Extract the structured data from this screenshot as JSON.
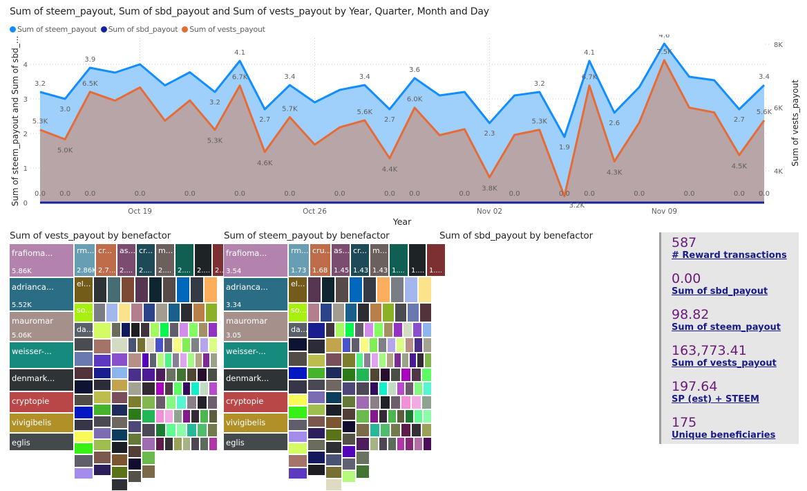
{
  "line_chart": {
    "title": "Sum of steem_payout, Sum of sbd_payout and Sum of vests_payout by Year, Quarter, Month and Day",
    "legend": [
      {
        "label": "Sum of steem_payout",
        "color": "#118dff"
      },
      {
        "label": "Sum of sbd_payout",
        "color": "#12239e"
      },
      {
        "label": "Sum of vests_payout",
        "color": "#e66c37"
      }
    ],
    "y_left_label": "Sum of steem_payout and Sum of sbd_...",
    "y_right_label": "Sum of vests_payout",
    "x_label": "Year",
    "y_left_ticks": [
      "0",
      "1",
      "2",
      "3",
      "4"
    ],
    "y_right_ticks": [
      "4K",
      "6K",
      "8K"
    ],
    "x_ticks": [
      "Oct 19",
      "Oct 26",
      "Nov 02",
      "Nov 09"
    ]
  },
  "chart_data": {
    "type": "area",
    "title": "Sum of steem_payout, Sum of sbd_payout and Sum of vests_payout by Year, Quarter, Month and Day",
    "xlabel": "Year",
    "ylabel_left": "Sum of steem_payout and Sum of sbd_payout",
    "ylabel_right": "Sum of vests_payout",
    "x": [
      "Oct 15",
      "Oct 16",
      "Oct 17",
      "Oct 18",
      "Oct 19",
      "Oct 20",
      "Oct 21",
      "Oct 22",
      "Oct 23",
      "Oct 24",
      "Oct 25",
      "Oct 26",
      "Oct 27",
      "Oct 28",
      "Oct 29",
      "Oct 30",
      "Oct 31",
      "Nov 01",
      "Nov 02",
      "Nov 03",
      "Nov 04",
      "Nov 05",
      "Nov 06",
      "Nov 07",
      "Nov 08",
      "Nov 09",
      "Nov 10",
      "Nov 11",
      "Nov 12",
      "Nov 13"
    ],
    "x_ticks": [
      "Oct 19",
      "Oct 26",
      "Nov 02",
      "Nov 09"
    ],
    "ylim_left": [
      0,
      4.76
    ],
    "ylim_right": [
      3000,
      8200
    ],
    "grid": true,
    "legend_position": "top-left",
    "series": [
      {
        "name": "Sum of steem_payout",
        "axis": "left",
        "color": "#118dff",
        "values": [
          3.2,
          3.0,
          3.9,
          3.76,
          4.0,
          3.39,
          3.77,
          3.2,
          4.1,
          2.7,
          3.4,
          2.9,
          3.26,
          3.4,
          2.7,
          3.6,
          3.1,
          3.2,
          2.3,
          3.1,
          3.2,
          1.9,
          4.1,
          2.6,
          3.34,
          4.6,
          3.64,
          3.54,
          2.7,
          3.4
        ],
        "labels": [
          "3.2",
          "3.0",
          "3.9",
          "",
          "",
          "",
          "",
          "3.2",
          "4.1",
          "2.7",
          "3.4",
          "",
          "",
          "3.4",
          "2.7",
          "3.6",
          "",
          "",
          "2.3",
          "",
          "3.2",
          "1.9",
          "4.1",
          "2.6",
          "",
          "4.6",
          "",
          "",
          "2.7",
          "3.4"
        ]
      },
      {
        "name": "Sum of sbd_payout",
        "axis": "left",
        "color": "#12239e",
        "values": [
          0,
          0,
          0,
          0,
          0,
          0,
          0,
          0,
          0,
          0,
          0,
          0,
          0,
          0,
          0,
          0,
          0,
          0,
          0,
          0,
          0,
          0,
          0,
          0,
          0,
          0,
          0,
          0,
          0,
          0
        ],
        "labels": [
          "0.0",
          "0.0",
          "0.0",
          "",
          "0.0",
          "",
          "0.0",
          "",
          "0.0",
          "",
          "0.0",
          "",
          "0.0",
          "",
          "0.0",
          "0.0",
          "",
          "0.0",
          "",
          "0.0",
          "",
          "0.0",
          "0.0",
          "",
          "0.0",
          "",
          "0.0",
          "",
          "0.0",
          "0.0"
        ]
      },
      {
        "name": "Sum of vests_payout",
        "axis": "right",
        "color": "#e66c37",
        "values": [
          5300,
          5000,
          6500,
          6220,
          6640,
          5590,
          6230,
          5300,
          6700,
          4600,
          5700,
          4830,
          5380,
          5600,
          4400,
          6000,
          5130,
          5320,
          3800,
          5140,
          5300,
          3200,
          6700,
          4300,
          5530,
          7500,
          6000,
          5850,
          4500,
          5600
        ],
        "labels": [
          "5.3K",
          "5.0K",
          "6.5K",
          "",
          "",
          "",
          "",
          "5.3K",
          "6.7K",
          "4.6K",
          "5.7K",
          "",
          "",
          "5.6K",
          "4.4K",
          "6.0K",
          "",
          "",
          "3.8K",
          "",
          "5.3K",
          "3.2K",
          "6.7K",
          "4.3K",
          "",
          "7.5K",
          "",
          "",
          "4.5K",
          "5.6K"
        ]
      }
    ]
  },
  "treemaps": [
    {
      "title": "Sum of vests_payout by benefactor",
      "big_tiles": [
        {
          "name": "frafioma...",
          "value": "5.86K",
          "color": "#b383ad"
        },
        {
          "name": "adrianca...",
          "value": "5.52K",
          "color": "#2a6d85"
        },
        {
          "name": "mauromar",
          "value": "5.06K",
          "color": "#a6908c"
        },
        {
          "name": "weisser-...",
          "value": "",
          "color": "#168a7c"
        },
        {
          "name": "denmark...",
          "value": "",
          "color": "#2e3435"
        },
        {
          "name": "cryptopie",
          "value": "",
          "color": "#b94747"
        },
        {
          "name": "vivigibelis",
          "value": "",
          "color": "#b29028"
        },
        {
          "name": "eglis",
          "value": "",
          "color": "#44494b"
        }
      ],
      "top_row": [
        {
          "name": "rm...",
          "value": "2.86K",
          "color": "#679eb3"
        },
        {
          "name": "cr...",
          "value": "2.7...",
          "color": "#bf6c4b"
        },
        {
          "name": "as...",
          "value": "2....",
          "color": "#7b4c70"
        },
        {
          "name": "cr...",
          "value": "2....",
          "color": "#1e4a58"
        },
        {
          "name": "m...",
          "value": "2....",
          "color": "#6c605e"
        },
        {
          "name": "",
          "value": "2....",
          "color": "#115e52"
        },
        {
          "name": "",
          "value": "2....",
          "color": "#1e2326"
        },
        {
          "name": "",
          "value": "2....",
          "color": "#7d3032"
        }
      ],
      "mid_labels": [
        {
          "name": "el...",
          "color": "#735c1a"
        },
        {
          "name": "so...",
          "color": "#a8ef12"
        },
        {
          "name": "da...",
          "color": "#59606a"
        }
      ]
    },
    {
      "title": "Sum of steem_payout by benefactor",
      "big_tiles": [
        {
          "name": "frafioma...",
          "value": "3.54",
          "color": "#b383ad"
        },
        {
          "name": "adrianca...",
          "value": "3.34",
          "color": "#2a6d85"
        },
        {
          "name": "mauromar",
          "value": "3.05",
          "color": "#a6908c"
        },
        {
          "name": "weisser-...",
          "value": "",
          "color": "#168a7c"
        },
        {
          "name": "denmark...",
          "value": "",
          "color": "#2e3435"
        },
        {
          "name": "cryptopie",
          "value": "",
          "color": "#b94747"
        },
        {
          "name": "vivigibelis",
          "value": "",
          "color": "#b29028"
        },
        {
          "name": "eglis",
          "value": "",
          "color": "#44494b"
        }
      ],
      "top_row": [
        {
          "name": "rm...",
          "value": "1.73",
          "color": "#679eb3"
        },
        {
          "name": "cru...",
          "value": "1.68",
          "color": "#bf6c4b"
        },
        {
          "name": "as...",
          "value": "1.45",
          "color": "#7b4c70"
        },
        {
          "name": "cr...",
          "value": "1.43",
          "color": "#1e4a58"
        },
        {
          "name": "m...",
          "value": "1.43",
          "color": "#6c605e"
        },
        {
          "name": "",
          "value": "1....",
          "color": "#115e52"
        },
        {
          "name": "",
          "value": "1....",
          "color": "#1e2326"
        },
        {
          "name": "",
          "value": "1....",
          "color": "#7d3032"
        }
      ],
      "mid_labels": [
        {
          "name": "el...",
          "color": "#735c1a"
        },
        {
          "name": "so...",
          "color": "#a8ef12"
        },
        {
          "name": "da...",
          "color": "#59606a"
        }
      ]
    }
  ],
  "treemap_palette": [
    "#2e3435",
    "#466d73",
    "#7d4a36",
    "#563650",
    "#0f2630",
    "#564b49",
    "#0167ba",
    "#353a45",
    "#fdae5c",
    "#7a7d84",
    "#a3b7ec",
    "#fbe38c",
    "#b27f8d",
    "#2a4389",
    "#a39c90",
    "#185f8c",
    "#2b2d33",
    "#b97f4b",
    "#8bb227",
    "#4a4c52",
    "#6a7ab0",
    "#52333b",
    "#0d1432",
    "#514c46",
    "#0318c0",
    "#373548",
    "#f7fa59",
    "#38f016",
    "#605e6b",
    "#a48ceb",
    "#d2fb64",
    "#a57468",
    "#5c3abf",
    "#191f8f",
    "#2b2c38",
    "#bcbc4f",
    "#45b32b",
    "#4a4953",
    "#7c6db3",
    "#9ebf50",
    "#7b574d",
    "#2c1d5b",
    "#6b6d5c",
    "#121a5c",
    "#1e1d22",
    "#40343f",
    "#a4f960",
    "#0bf54f",
    "#635c6a",
    "#d28deb",
    "#83fc64",
    "#a59066",
    "#9233c1",
    "#d3dcc2",
    "#8a4fca",
    "#8db7ec",
    "#c1a44c",
    "#7a4f5c",
    "#1e2c5b",
    "#6f6761",
    "#0d3d5d",
    "#1c1f25",
    "#7c5630",
    "#5b7318",
    "#2e3035",
    "#495475",
    "#767132",
    "#dfdbc3",
    "#4a53c7",
    "#605e6c",
    "#f8fa82",
    "#80ef56",
    "#808087",
    "#b5a6ec",
    "#dbfd86",
    "#b68f88",
    "#4a2f8b",
    "#a4a293",
    "#7c7e2e",
    "#2c7a19",
    "#4e4878",
    "#657a38",
    "#523f37",
    "#120d2f",
    "#555048",
    "#5303b9",
    "#616271",
    "#b5f97d",
    "#4ef286",
    "#888191",
    "#dfa4ef",
    "#a4f985",
    "#b4a584",
    "#7c2c92",
    "#9aa38a",
    "#4c1b95",
    "#332a33",
    "#82b74f",
    "#23b656",
    "#4d4857",
    "#a06bb0",
    "#6aba50",
    "#7a6a4a",
    "#4d1d5c",
    "#6a7260",
    "#437432",
    "#504733",
    "#280d2e",
    "#4a5046",
    "#a803bd",
    "#4e3848",
    "#5dfc63",
    "#320d5e",
    "#13efcb",
    "#c2dcc1",
    "#b84bcb",
    "#6b5a6b",
    "#83f983",
    "#55f7d1",
    "#8b8089",
    "#232129",
    "#6d5d6d",
    "#f190d8",
    "#f2a9e4",
    "#90a390",
    "#85178f",
    "#342a33",
    "#4bb84f",
    "#5e5e3e",
    "#1c7b33",
    "#61fb93",
    "#8cfca9",
    "#27b89a",
    "#4fbd6b",
    "#737a4d",
    "#5d1b49",
    "#343036",
    "#9aa25a",
    "#a6b382",
    "#4e4652",
    "#5c6b5c",
    "#b136a7",
    "#862a77",
    "#b26fa5",
    "#4a0f58",
    "#251c1d",
    "#1f1f27",
    "#9e9f89"
  ],
  "sbd_treemap": {
    "title": "Sum of sbd_payout by benefactor"
  },
  "kpis": [
    {
      "value": "587",
      "label": "# Reward transactions"
    },
    {
      "value": "0.00",
      "label": "Sum of sbd_payout"
    },
    {
      "value": "98.82",
      "label": "Sum of steem_payout"
    },
    {
      "value": "163,773.41",
      "label": "Sum of vests_payout"
    },
    {
      "value": "197.64",
      "label": "SP (est) + STEEM"
    },
    {
      "value": "175",
      "label": "Unique beneficiaries"
    }
  ]
}
